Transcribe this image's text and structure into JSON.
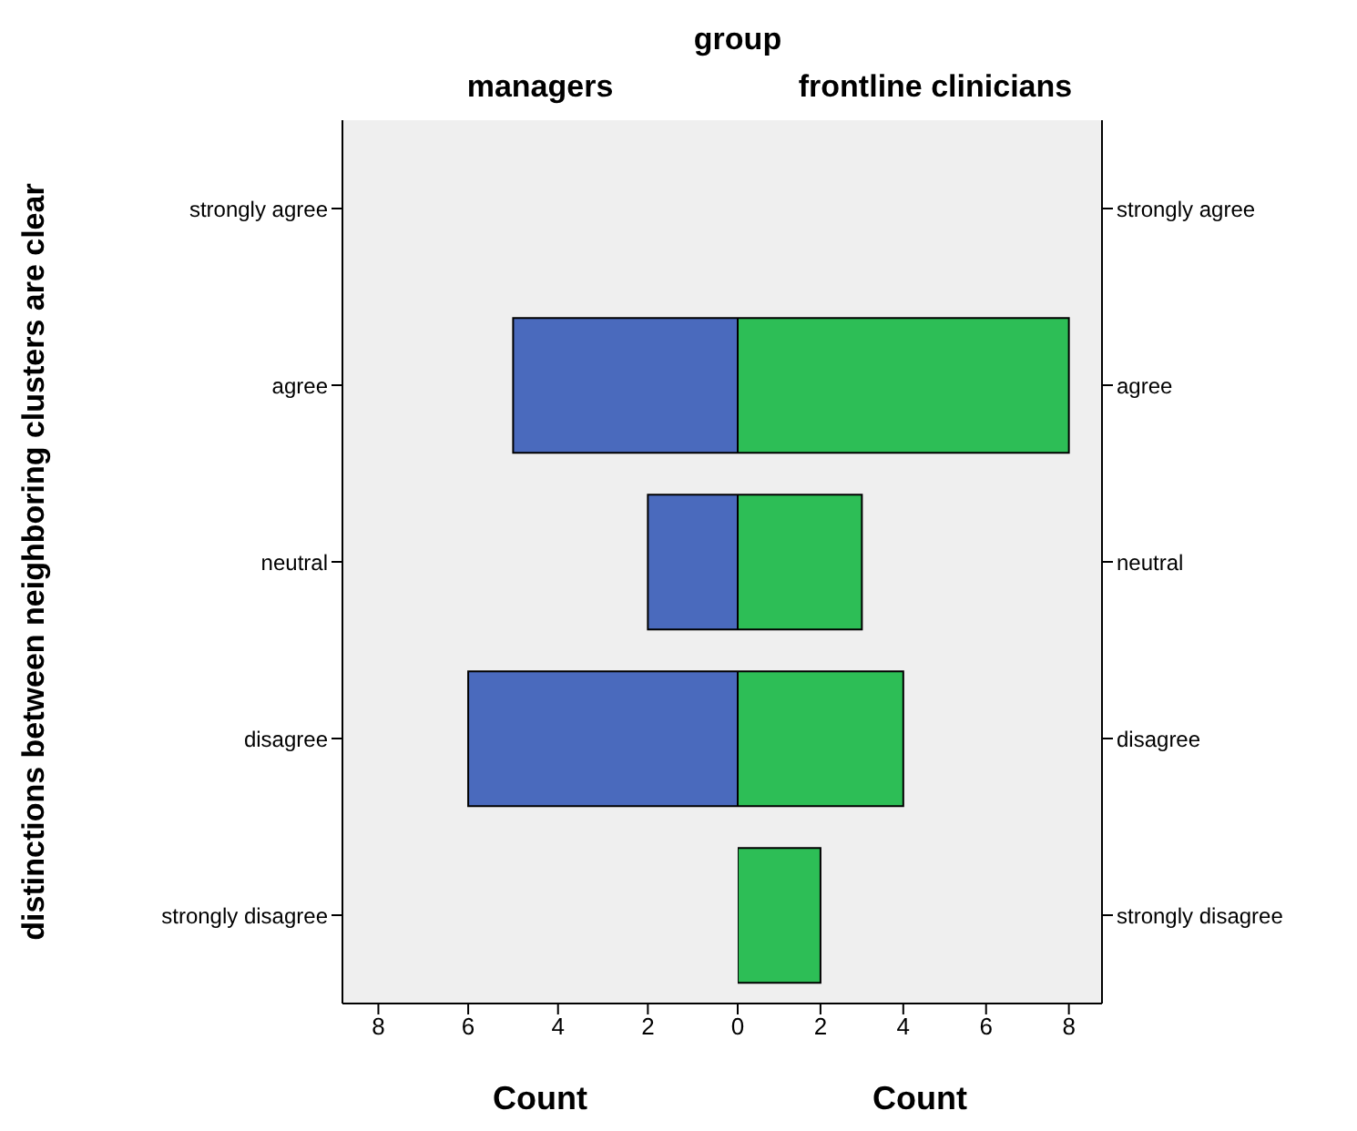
{
  "chart_data": [
    {
      "type": "bar",
      "orientation": "horizontal",
      "title": "managers",
      "annotations": [
        "group"
      ],
      "ylabel": "distinctions between neighboring clusters are clear",
      "xlabel": "Count",
      "categories": [
        "strongly agree",
        "agree",
        "neutral",
        "disagree",
        "strongly disagree"
      ],
      "values": [
        0,
        5,
        2,
        6,
        0
      ],
      "color": "#4a6abd",
      "xlim": [
        8.8,
        0
      ],
      "xticks": [
        8,
        6,
        4,
        2,
        {
          "value": 0,
          "label": null
        }
      ]
    },
    {
      "type": "bar",
      "orientation": "horizontal",
      "title": "frontline clinicians",
      "xlabel": "Count",
      "categories": [
        "strongly agree",
        "agree",
        "neutral",
        "disagree",
        "strongly disagree"
      ],
      "values": [
        0,
        8,
        3,
        4,
        2
      ],
      "color": "#2dbe56",
      "xlim": [
        0,
        8.8
      ],
      "xticks": [
        0,
        2,
        4,
        6,
        8
      ]
    }
  ]
}
